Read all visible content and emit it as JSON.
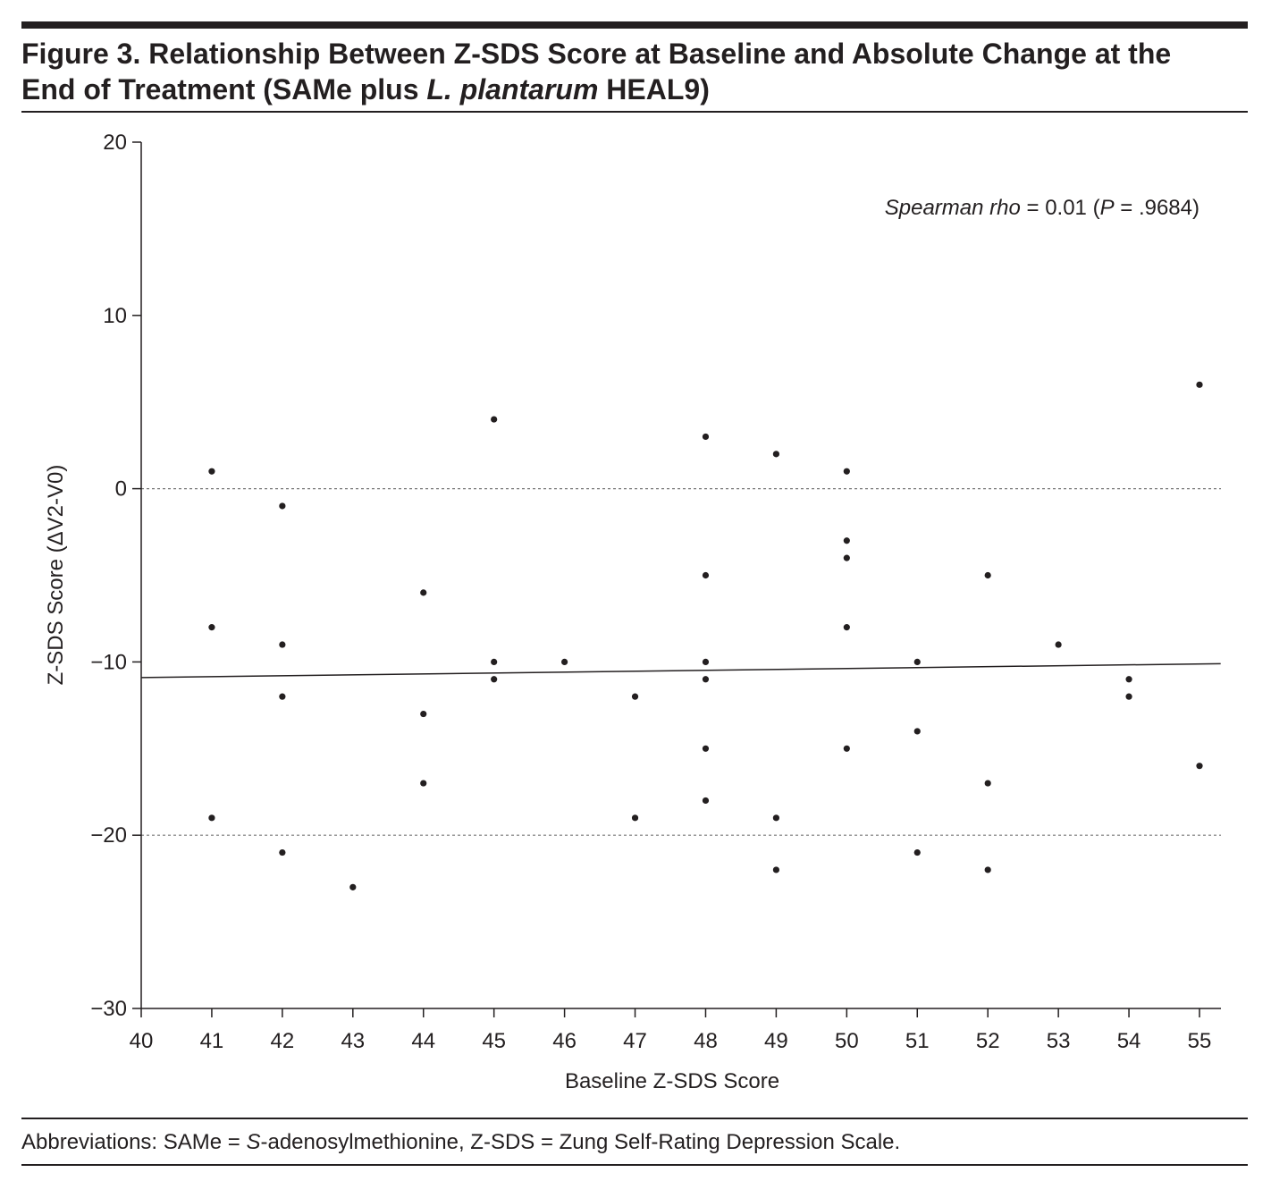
{
  "figure": {
    "title_line1": "Figure 3. Relationship Between Z-SDS Score at Baseline and Absolute Change at the",
    "title_line2_a": "End of Treatment (SAMe plus ",
    "title_line2_italic": "L. plantarum",
    "title_line2_b": " HEAL9)",
    "footnote_a": "Abbreviations: SAMe = ",
    "footnote_italic": "S",
    "footnote_b": "-adenosylmethionine, Z-SDS = Zung Self-Rating Depression Scale."
  },
  "chart_data": {
    "type": "scatter",
    "title": "Relationship Between Z-SDS Score at Baseline and Absolute Change at the End of Treatment (SAMe plus L. plantarum HEAL9)",
    "xlabel": "Baseline Z-SDS Score",
    "ylabel": "Z-SDS Score (ΔV2-V0)",
    "xlim": [
      40,
      55.3
    ],
    "ylim": [
      -30,
      20
    ],
    "xticks": [
      40,
      41,
      42,
      43,
      44,
      45,
      46,
      47,
      48,
      49,
      50,
      51,
      52,
      53,
      54,
      55
    ],
    "yticks": [
      20,
      10,
      0,
      -10,
      -20,
      -30
    ],
    "ytick_labels": [
      "20",
      "10",
      "0",
      "−10",
      "−20",
      "−30"
    ],
    "reference_lines_y": [
      0,
      -20
    ],
    "annotation_italic": "Spearman rho",
    "annotation_rest": " = 0.01 (",
    "annotation_p": "P",
    "annotation_end": " = .9684)",
    "regression_line": {
      "x": [
        40,
        55.3
      ],
      "y": [
        -10.9,
        -10.1
      ]
    },
    "points": [
      [
        41,
        1
      ],
      [
        41,
        -8
      ],
      [
        41,
        -19
      ],
      [
        42,
        -1
      ],
      [
        42,
        -9
      ],
      [
        42,
        -12
      ],
      [
        42,
        -21
      ],
      [
        43,
        -23
      ],
      [
        44,
        -6
      ],
      [
        44,
        -13
      ],
      [
        44,
        -17
      ],
      [
        45,
        4
      ],
      [
        45,
        -10
      ],
      [
        45,
        -11
      ],
      [
        46,
        -10
      ],
      [
        47,
        -12
      ],
      [
        47,
        -19
      ],
      [
        48,
        3
      ],
      [
        48,
        -5
      ],
      [
        48,
        -10
      ],
      [
        48,
        -11
      ],
      [
        48,
        -15
      ],
      [
        48,
        -18
      ],
      [
        49,
        2
      ],
      [
        49,
        -19
      ],
      [
        49,
        -22
      ],
      [
        50,
        1
      ],
      [
        50,
        -3
      ],
      [
        50,
        -4
      ],
      [
        50,
        -8
      ],
      [
        50,
        -15
      ],
      [
        51,
        -10
      ],
      [
        51,
        -14
      ],
      [
        51,
        -21
      ],
      [
        52,
        -5
      ],
      [
        52,
        -17
      ],
      [
        52,
        -22
      ],
      [
        53,
        -9
      ],
      [
        54,
        -11
      ],
      [
        54,
        -12
      ],
      [
        55,
        6
      ],
      [
        55,
        -16
      ]
    ]
  }
}
